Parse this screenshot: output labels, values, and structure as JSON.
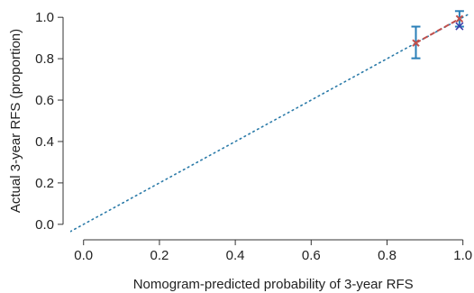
{
  "chart_data": {
    "type": "scatter",
    "title": "",
    "xlabel": "Nomogram-predicted probability of 3-year RFS",
    "ylabel": "Actual 3-year RFS (proportion)",
    "xlim": [
      -0.035,
      1.015
    ],
    "ylim": [
      -0.04,
      1.04
    ],
    "xticks": [
      0.0,
      0.2,
      0.4,
      0.6,
      0.8,
      1.0
    ],
    "yticks": [
      0.0,
      0.2,
      0.4,
      0.6,
      0.8,
      1.0
    ],
    "xtick_labels": [
      "0.0",
      "0.2",
      "0.4",
      "0.6",
      "0.8",
      "1.0"
    ],
    "ytick_labels": [
      "0.0",
      "0.2",
      "0.4",
      "0.6",
      "0.8",
      "1.0"
    ],
    "grid": false,
    "series": [
      {
        "kind": "reference-line",
        "x": [
          -0.035,
          1.015
        ],
        "y": [
          -0.035,
          1.015
        ],
        "color": "#2a7aa8"
      },
      {
        "kind": "observed",
        "x": [
          0.876,
          0.991
        ],
        "y": [
          0.876,
          0.993
        ],
        "error_low": [
          0.802,
          0.955
        ],
        "error_high": [
          0.955,
          1.03
        ],
        "color": "#2a7fb8",
        "line_color": "#c0504d"
      },
      {
        "kind": "bias-corrected",
        "x": [
          0.991
        ],
        "y": [
          0.957
        ],
        "color": "#3a3aa8"
      }
    ]
  }
}
